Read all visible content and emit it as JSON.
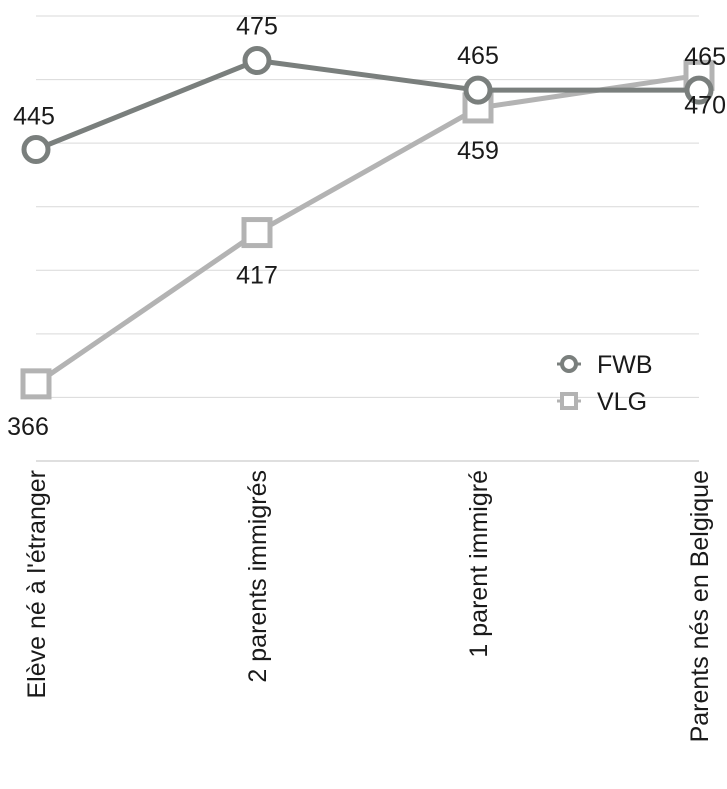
{
  "chart_data": {
    "type": "line",
    "categories": [
      "Elève né à l'étranger",
      "2 parents immigrés",
      "1 parent immigré",
      "Parents nés en Belgique"
    ],
    "ylim": [
      340,
      490
    ],
    "grid": true,
    "legend_position": "right",
    "series": [
      {
        "name": "FWB",
        "values": [
          445,
          475,
          465,
          465
        ],
        "color": "#7a7f7d",
        "marker": "circle",
        "labels": [
          "445",
          "475",
          "465",
          "465"
        ]
      },
      {
        "name": "VLG",
        "values": [
          366,
          417,
          459,
          470
        ],
        "color": "#b3b3b3",
        "marker": "square",
        "labels": [
          "366",
          "417",
          "459",
          "470"
        ]
      }
    ]
  }
}
